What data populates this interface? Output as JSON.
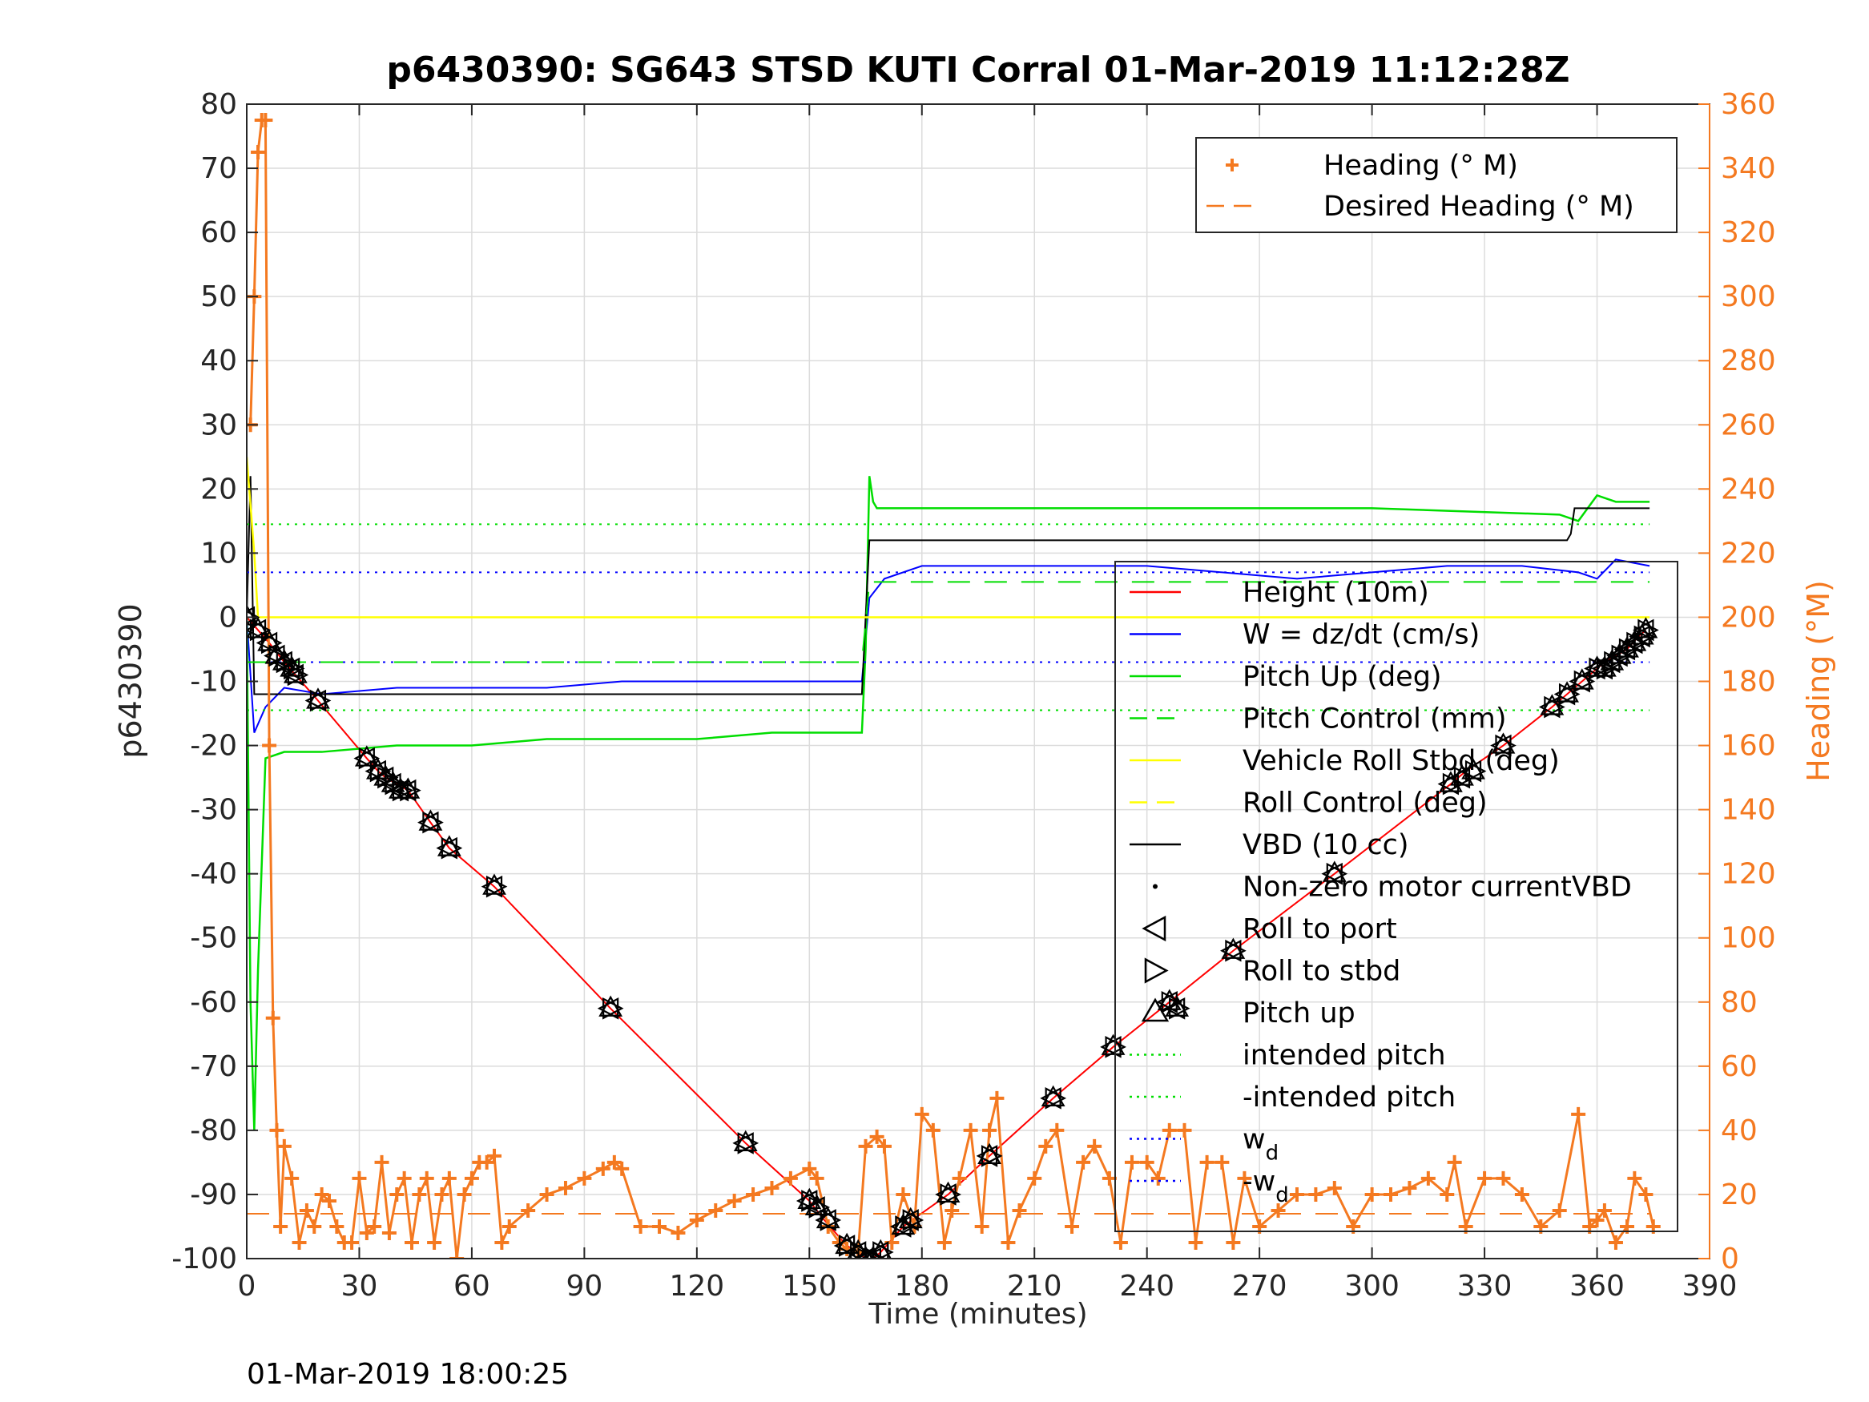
{
  "chart_data": {
    "type": "line",
    "title": "p6430390: SG643 STSD KUTI Corral 01-Mar-2019 11:12:28Z",
    "xlabel": "Time (minutes)",
    "ylabel_left": "p6430390",
    "ylabel_right": "Heading (°M)",
    "xlim": [
      0,
      390
    ],
    "ylim_left": [
      -100,
      80
    ],
    "ylim_right": [
      0,
      360
    ],
    "x_ticks": [
      "0",
      "30",
      "60",
      "90",
      "120",
      "150",
      "180",
      "210",
      "240",
      "270",
      "300",
      "330",
      "360",
      "390"
    ],
    "y_left_ticks": [
      "80",
      "70",
      "60",
      "50",
      "40",
      "30",
      "20",
      "10",
      "0",
      "-10",
      "-20",
      "-30",
      "-40",
      "-50",
      "-60",
      "-70",
      "-80",
      "-90",
      "-100"
    ],
    "y_right_ticks": [
      "360",
      "340",
      "320",
      "300",
      "280",
      "260",
      "240",
      "220",
      "200",
      "180",
      "160",
      "140",
      "120",
      "100",
      "80",
      "60",
      "40",
      "20",
      "0"
    ],
    "grid": true,
    "footer_timestamp": "01-Mar-2019 18:00:25",
    "legend_heading": [
      {
        "label": "Heading (° M)",
        "color": "#f47920",
        "style": "plus"
      },
      {
        "label": "Desired Heading (° M)",
        "color": "#f47920",
        "style": "dash"
      }
    ],
    "legend_main": [
      {
        "label": "Height (10m)",
        "color": "#ff0000",
        "style": "solid"
      },
      {
        "label": "W = dz/dt (cm/s)",
        "color": "#0000ff",
        "style": "solid"
      },
      {
        "label": "Pitch Up (deg)",
        "color": "#00dd00",
        "style": "solid"
      },
      {
        "label": "Pitch Control (mm)",
        "color": "#00dd00",
        "style": "dash"
      },
      {
        "label": "Vehicle Roll Stbd (deg)",
        "color": "#ffff00",
        "style": "solid"
      },
      {
        "label": "Roll Control (deg)",
        "color": "#ffff00",
        "style": "dash"
      },
      {
        "label": "VBD (10 cc)",
        "color": "#000000",
        "style": "solid"
      },
      {
        "label": "Non-zero motor currentVBD",
        "color": "#000000",
        "style": "dot"
      },
      {
        "label": "Roll to port",
        "color": "#000000",
        "style": "tri-left"
      },
      {
        "label": "Roll to stbd",
        "color": "#000000",
        "style": "tri-right"
      },
      {
        "label": "Pitch up",
        "color": "#000000",
        "style": "tri-up"
      },
      {
        "label": "intended pitch",
        "color": "#00dd00",
        "style": "dotted"
      },
      {
        "label": "-intended pitch",
        "color": "#00dd00",
        "style": "dotted"
      },
      {
        "label": "w",
        "sub": "d",
        "color": "#0000ff",
        "style": "dotted"
      },
      {
        "label": "-w",
        "sub": "d",
        "color": "#0000ff",
        "style": "dotted"
      }
    ],
    "series": [
      {
        "name": "Height (10m)",
        "x": [
          0,
          3,
          6,
          10,
          13,
          19,
          32,
          35,
          37,
          40,
          43,
          49,
          54,
          66,
          97,
          133,
          150,
          154,
          160,
          163,
          165,
          167,
          169,
          175,
          187,
          198,
          215,
          231,
          246,
          263,
          290,
          321,
          325,
          335,
          348,
          352,
          356,
          360,
          362,
          365,
          368,
          371,
          373
        ],
        "y": [
          0,
          -2,
          -4,
          -7,
          -9,
          -13,
          -22,
          -24,
          -25,
          -26,
          -27,
          -32,
          -36,
          -42,
          -61,
          -82,
          -91,
          -94,
          -98,
          -99,
          -100,
          -100,
          -99,
          -95,
          -90,
          -84,
          -75,
          -67,
          -60,
          -52,
          -40,
          -26,
          -24,
          -20,
          -14,
          -12,
          -10,
          -8,
          -7,
          -6,
          -5,
          -3,
          -2
        ]
      },
      {
        "name": "W = dz/dt (cm/s)",
        "x": [
          0,
          2,
          5,
          10,
          20,
          40,
          60,
          80,
          100,
          120,
          140,
          160,
          164,
          166,
          170,
          180,
          200,
          220,
          240,
          260,
          280,
          300,
          320,
          340,
          355,
          360,
          365,
          374
        ],
        "y": [
          0,
          -18,
          -14,
          -11,
          -12,
          -11,
          -11,
          -11,
          -10,
          -10,
          -10,
          -10,
          -10,
          3,
          6,
          8,
          8,
          8,
          8,
          7,
          6,
          7,
          8,
          8,
          7,
          6,
          9,
          8
        ]
      },
      {
        "name": "Pitch Up (deg)",
        "x": [
          0,
          1,
          2,
          3,
          5,
          10,
          20,
          40,
          60,
          80,
          100,
          120,
          140,
          160,
          164,
          165,
          166,
          167,
          168,
          170,
          200,
          250,
          300,
          350,
          355,
          360,
          365,
          374
        ],
        "y": [
          0,
          -60,
          -80,
          -55,
          -22,
          -21,
          -21,
          -20,
          -20,
          -19,
          -19,
          -19,
          -18,
          -18,
          -18,
          -5,
          22,
          18,
          17,
          17,
          17,
          17,
          17,
          16,
          15,
          19,
          18,
          18
        ]
      },
      {
        "name": "VBD (10 cc)",
        "x": [
          0,
          1,
          2,
          3,
          164,
          166,
          167,
          352,
          353,
          354,
          374
        ],
        "y": [
          0,
          22,
          -12,
          -12,
          -12,
          12,
          12,
          12,
          13,
          17,
          17
        ]
      },
      {
        "name": "Vehicle Roll Stbd (deg)",
        "x": [
          0,
          2,
          3,
          5,
          160,
          164,
          170,
          372,
          374
        ],
        "y": [
          25,
          10,
          0,
          0,
          0,
          0,
          0,
          0,
          0
        ]
      },
      {
        "name": "intended pitch",
        "x": [
          0,
          374
        ],
        "y": [
          14.5,
          14.5
        ]
      },
      {
        "name": "-intended pitch",
        "x": [
          0,
          374
        ],
        "y": [
          -14.5,
          -14.5
        ]
      },
      {
        "name": "w_d",
        "x": [
          0,
          374
        ],
        "y": [
          7,
          7
        ]
      },
      {
        "name": "-w_d",
        "x": [
          0,
          374
        ],
        "y": [
          -7,
          -7
        ]
      },
      {
        "name": "Pitch Control (mm)",
        "x": [
          0,
          164,
          166,
          374
        ],
        "y": [
          -7,
          -7,
          5.5,
          5.5
        ]
      },
      {
        "name": "Heading (° M)",
        "axis": "right",
        "x": [
          1,
          2,
          3,
          4,
          5,
          6,
          7,
          8,
          9,
          10,
          12,
          14,
          16,
          18,
          20,
          22,
          24,
          26,
          28,
          30,
          32,
          34,
          36,
          38,
          40,
          42,
          44,
          46,
          48,
          50,
          52,
          54,
          56,
          58,
          60,
          62,
          64,
          66,
          68,
          70,
          75,
          80,
          85,
          90,
          95,
          98,
          100,
          105,
          110,
          115,
          120,
          125,
          130,
          135,
          140,
          145,
          150,
          152,
          155,
          158,
          160,
          163,
          165,
          168,
          170,
          172,
          175,
          178,
          180,
          183,
          186,
          188,
          190,
          193,
          196,
          198,
          200,
          203,
          206,
          210,
          213,
          216,
          220,
          223,
          226,
          230,
          233,
          236,
          240,
          243,
          246,
          250,
          253,
          256,
          260,
          263,
          266,
          270,
          275,
          280,
          285,
          290,
          295,
          300,
          305,
          310,
          315,
          320,
          322,
          325,
          330,
          335,
          340,
          345,
          350,
          355,
          358,
          360,
          362,
          365,
          368,
          370,
          373,
          375
        ],
        "y": [
          260,
          300,
          345,
          355,
          355,
          160,
          75,
          40,
          10,
          35,
          25,
          5,
          15,
          10,
          20,
          18,
          10,
          5,
          5,
          25,
          8,
          10,
          30,
          8,
          20,
          25,
          5,
          20,
          25,
          5,
          20,
          25,
          0,
          20,
          25,
          30,
          30,
          32,
          5,
          10,
          15,
          20,
          22,
          25,
          28,
          30,
          28,
          10,
          10,
          8,
          12,
          15,
          18,
          20,
          22,
          25,
          28,
          25,
          10,
          5,
          3,
          2,
          35,
          38,
          35,
          5,
          20,
          10,
          45,
          40,
          5,
          15,
          25,
          40,
          10,
          40,
          50,
          5,
          15,
          25,
          35,
          40,
          10,
          30,
          35,
          25,
          5,
          30,
          30,
          25,
          40,
          40,
          5,
          30,
          30,
          5,
          25,
          10,
          15,
          20,
          20,
          22,
          10,
          20,
          20,
          22,
          25,
          20,
          30,
          10,
          25,
          25,
          20,
          10,
          15,
          45,
          10,
          12,
          15,
          5,
          10,
          25,
          20,
          10
        ]
      },
      {
        "name": "Desired Heading (° M)",
        "axis": "right",
        "x": [
          0,
          374
        ],
        "y": [
          14,
          14
        ]
      }
    ],
    "markers": {
      "x": [
        0,
        3,
        6,
        8,
        10,
        12,
        13,
        19,
        32,
        35,
        37,
        39,
        41,
        43,
        49,
        54,
        66,
        97,
        133,
        150,
        152,
        155,
        160,
        163,
        165,
        167,
        169,
        175,
        177,
        187,
        198,
        215,
        231,
        246,
        248,
        263,
        290,
        321,
        324,
        327,
        335,
        348,
        352,
        356,
        360,
        362,
        364,
        366,
        368,
        370,
        372,
        373
      ],
      "y": [
        0,
        -2,
        -4,
        -6,
        -7,
        -8,
        -9,
        -13,
        -22,
        -24,
        -25,
        -26,
        -27,
        -27,
        -32,
        -36,
        -42,
        -61,
        -82,
        -91,
        -92,
        -94,
        -98,
        -99,
        -100,
        -100,
        -99,
        -95,
        -94,
        -90,
        -84,
        -75,
        -67,
        -60,
        -61,
        -52,
        -40,
        -26,
        -25,
        -24,
        -20,
        -14,
        -12,
        -10,
        -8,
        -8,
        -7,
        -6,
        -5,
        -4,
        -3,
        -2
      ]
    }
  }
}
